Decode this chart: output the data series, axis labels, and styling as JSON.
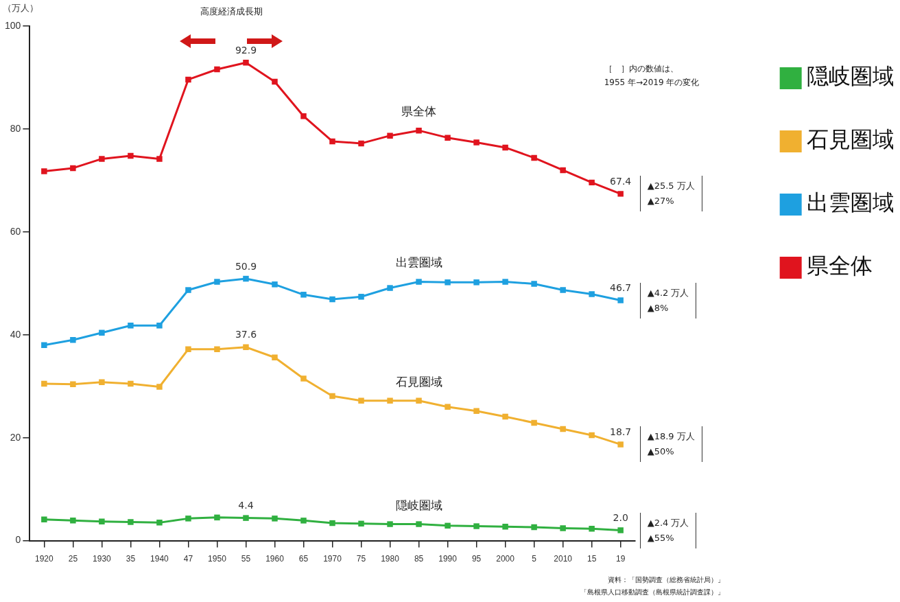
{
  "chart_data": {
    "type": "line",
    "ylabel": "（万人）",
    "categories": [
      "1920",
      "25",
      "1930",
      "35",
      "1940",
      "47",
      "1950",
      "55",
      "1960",
      "65",
      "1970",
      "75",
      "1980",
      "85",
      "1990",
      "95",
      "2000",
      "5",
      "2010",
      "15",
      "19"
    ],
    "series": [
      {
        "name": "県全体",
        "color": "#e0141e",
        "values": [
          71.8,
          72.4,
          74.2,
          74.8,
          74.2,
          89.6,
          91.6,
          92.9,
          89.2,
          82.5,
          77.6,
          77.2,
          78.7,
          79.7,
          78.3,
          77.4,
          76.4,
          74.4,
          72.0,
          69.6,
          67.4
        ],
        "value_labels": [
          null,
          null,
          null,
          null,
          null,
          null,
          null,
          "92.9",
          null,
          null,
          null,
          null,
          null,
          null,
          null,
          null,
          null,
          null,
          null,
          null,
          "67.4"
        ]
      },
      {
        "name": "出雲圏域",
        "color": "#1ea0e0",
        "values": [
          38.0,
          39.0,
          40.4,
          41.8,
          41.8,
          48.7,
          50.3,
          50.9,
          49.8,
          47.8,
          46.9,
          47.4,
          49.1,
          50.3,
          50.2,
          50.2,
          50.3,
          49.9,
          48.7,
          47.9,
          46.7
        ],
        "value_labels": [
          null,
          null,
          null,
          null,
          null,
          null,
          null,
          "50.9",
          null,
          null,
          null,
          null,
          null,
          null,
          null,
          null,
          null,
          null,
          null,
          null,
          "46.7"
        ]
      },
      {
        "name": "石見圏域",
        "color": "#f0b030",
        "values": [
          30.5,
          30.4,
          30.8,
          30.5,
          29.9,
          37.2,
          37.2,
          37.6,
          35.6,
          31.5,
          28.1,
          27.2,
          27.2,
          27.2,
          26.0,
          25.2,
          24.1,
          22.9,
          21.7,
          20.5,
          18.7
        ],
        "value_labels": [
          null,
          null,
          null,
          null,
          null,
          null,
          null,
          "37.6",
          null,
          null,
          null,
          null,
          null,
          null,
          null,
          null,
          null,
          null,
          null,
          null,
          "18.7"
        ]
      },
      {
        "name": "隠岐圏域",
        "color": "#30b040",
        "values": [
          4.1,
          3.9,
          3.7,
          3.6,
          3.5,
          4.3,
          4.5,
          4.4,
          4.3,
          3.9,
          3.4,
          3.3,
          3.2,
          3.2,
          2.9,
          2.8,
          2.7,
          2.6,
          2.4,
          2.3,
          2.0
        ],
        "value_labels": [
          null,
          null,
          null,
          null,
          null,
          null,
          null,
          "4.4",
          null,
          null,
          null,
          null,
          null,
          null,
          null,
          null,
          null,
          null,
          null,
          null,
          "2.0"
        ]
      }
    ],
    "ylim": [
      0,
      100
    ],
    "yticks": [
      0,
      20,
      40,
      60,
      80,
      100
    ],
    "grid": false,
    "legend": "right",
    "marker": "square",
    "line_style": "solid",
    "annotations": [
      "高度経済成長期",
      "［　］内の数値は、\n1955 年→2019 年の変化",
      "資料：「国勢調査（総務省統計局）」",
      "「島根県人口移動調査（島根県統計調査課）」",
      {
        "text": "▲25.5 万人\n▲27%",
        "x": "19",
        "y": 67.4
      },
      {
        "text": "▲4.2 万人\n▲8%",
        "x": "19",
        "y": 46.7
      },
      {
        "text": "▲18.9 万人\n▲50%",
        "x": "19",
        "y": 18.7
      },
      {
        "text": "▲2.4 万人\n▲55%",
        "x": "19",
        "y": 2.0
      }
    ]
  }
}
